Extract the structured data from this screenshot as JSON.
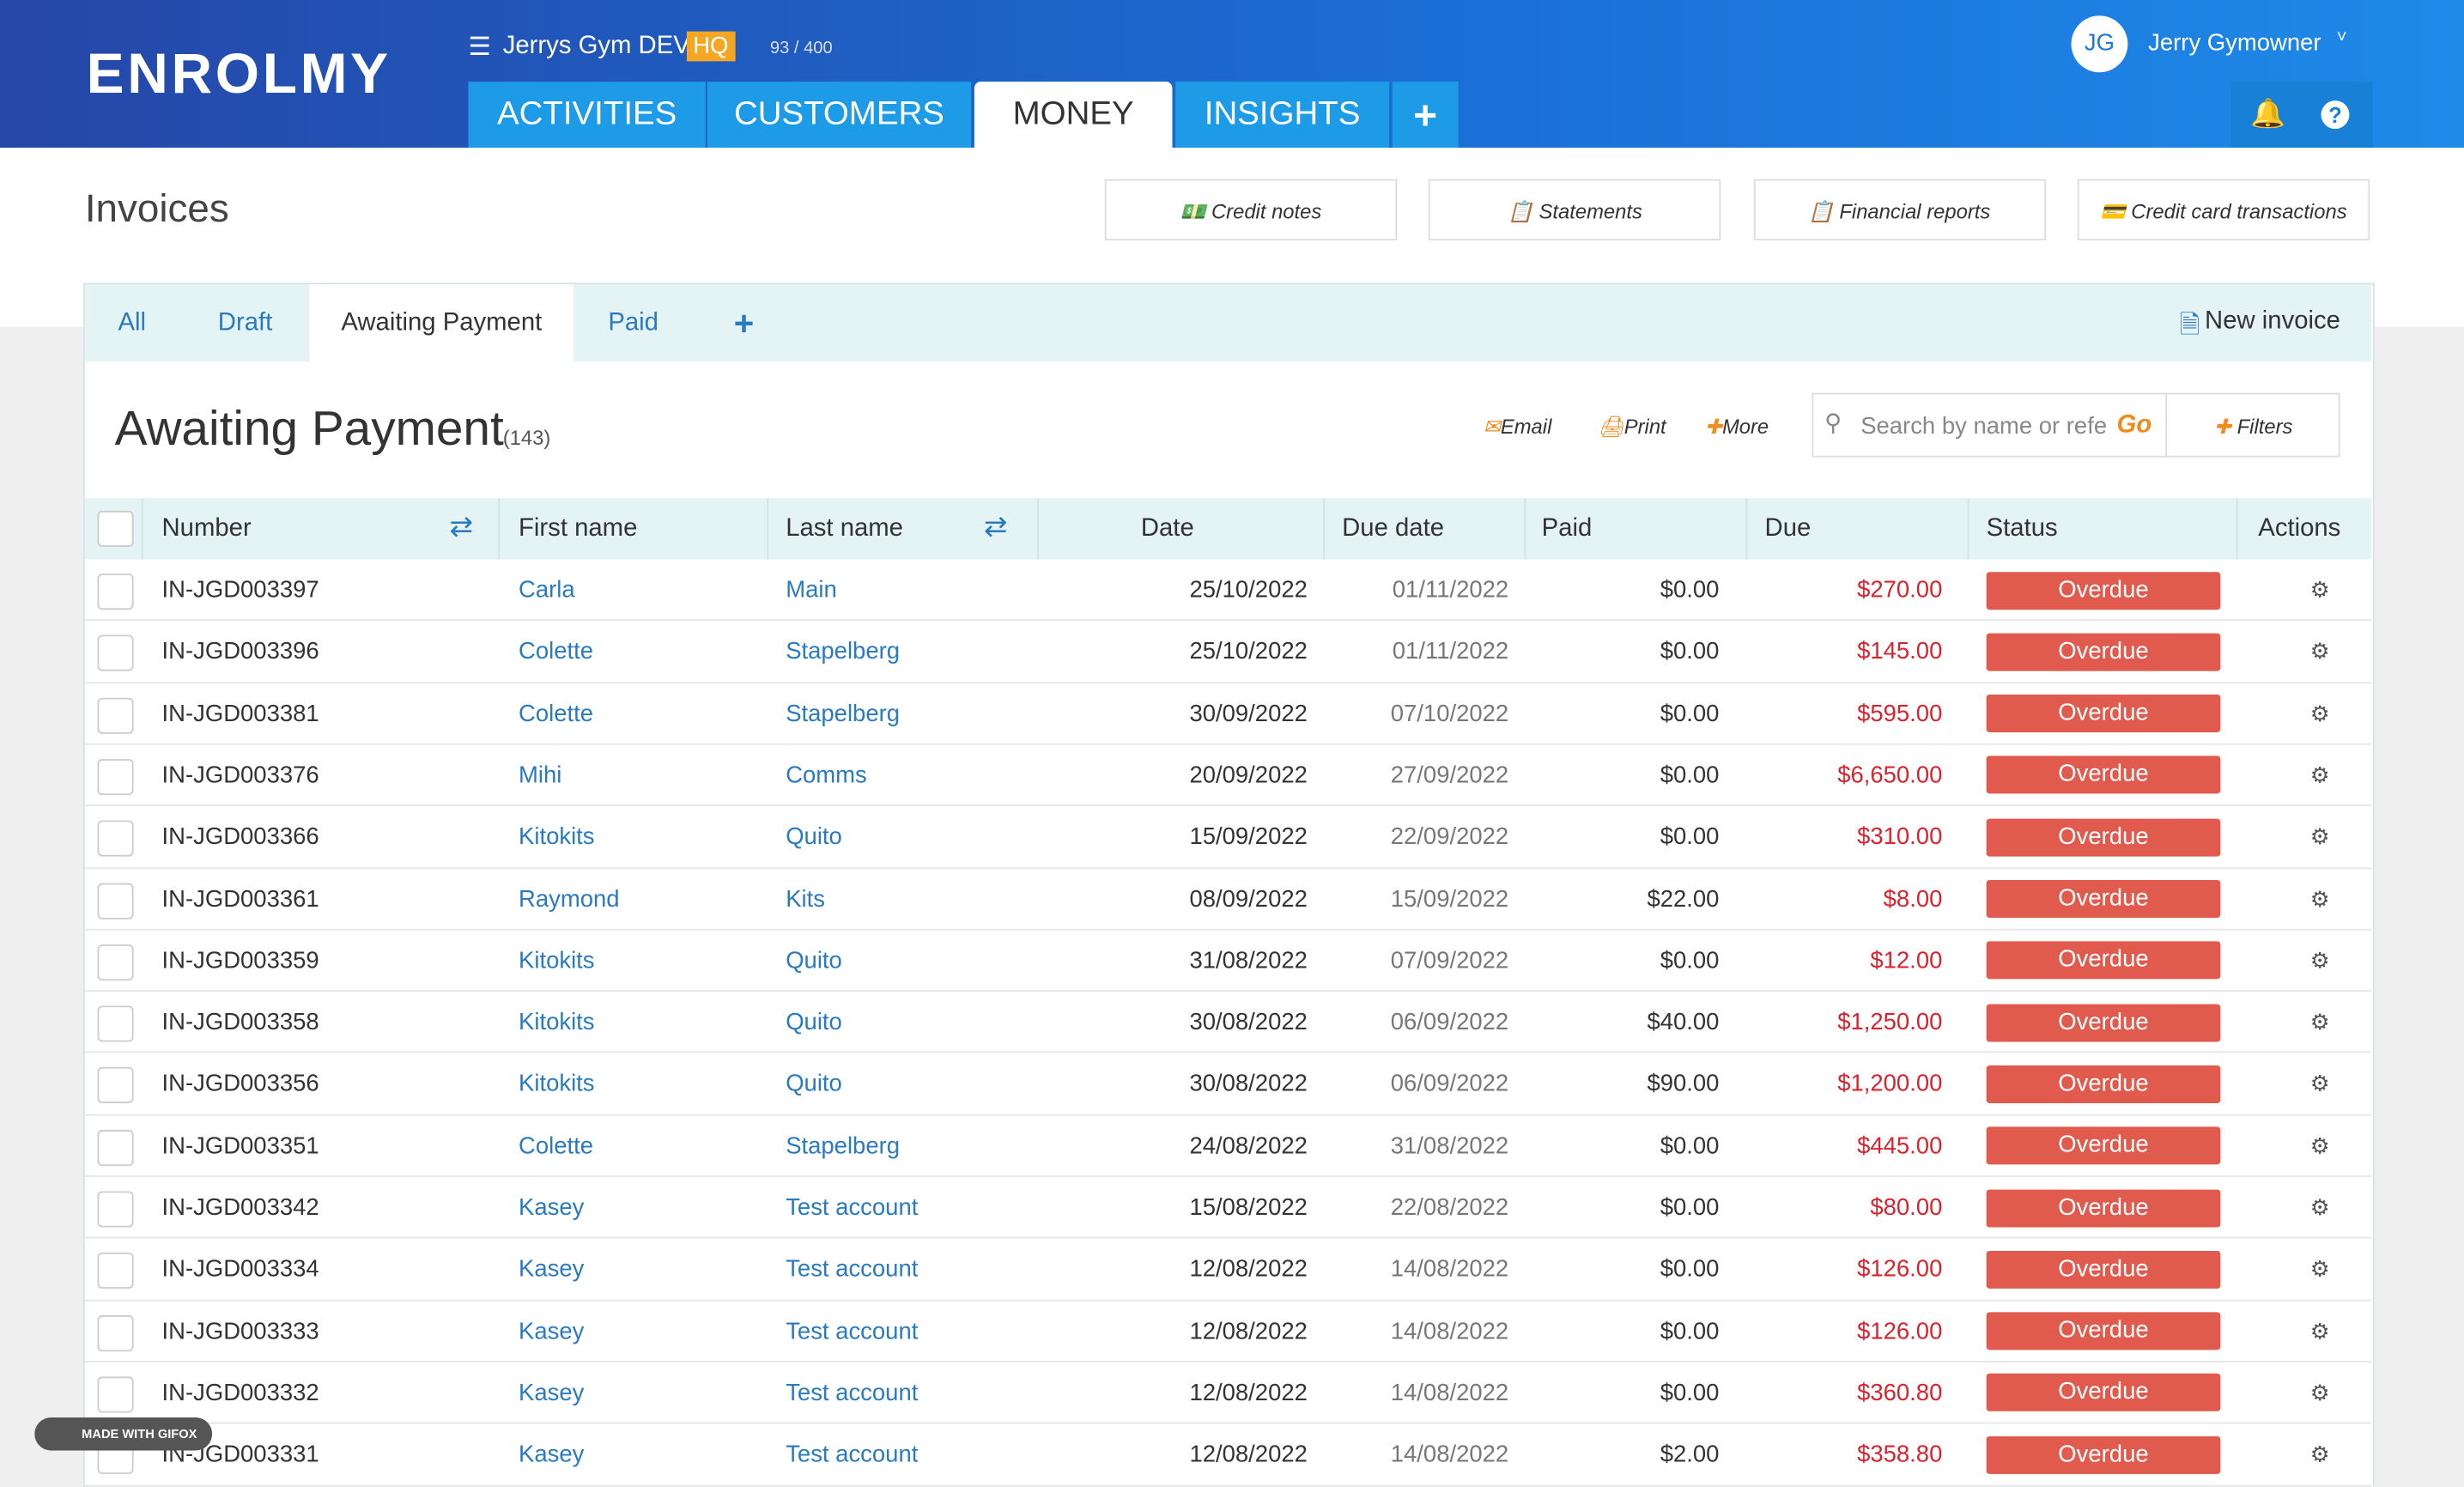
{
  "header": {
    "logo": "ENROLMY",
    "org": "Jerrys Gym DEV",
    "badge": "HQ",
    "usage": "93 / 400",
    "avatar": "JG",
    "user": "Jerry Gymowner"
  },
  "nav": [
    "ACTIVITIES",
    "CUSTOMERS",
    "MONEY",
    "INSIGHTS"
  ],
  "page": {
    "title": "Invoices",
    "buttons": [
      "Credit notes",
      "Statements",
      "Financial reports",
      "Credit card transactions"
    ]
  },
  "tabs": {
    "items": [
      "All",
      "Draft",
      "Awaiting Payment",
      "Paid"
    ],
    "new": "New invoice"
  },
  "section": {
    "title": "Awaiting Payment",
    "count": "(143)",
    "actions": [
      "Email",
      "Print",
      "More"
    ],
    "search": "Search by name or refe",
    "go": "Go",
    "filters": "Filters"
  },
  "table": {
    "columns": [
      "Number",
      "First name",
      "Last name",
      "Date",
      "Due date",
      "Paid",
      "Due",
      "Status",
      "Actions"
    ],
    "rows": [
      [
        "IN-JGD003397",
        "Carla",
        "Main",
        "25/10/2022",
        "01/11/2022",
        "$0.00",
        "$270.00",
        "Overdue"
      ],
      [
        "IN-JGD003396",
        "Colette",
        "Stapelberg",
        "25/10/2022",
        "01/11/2022",
        "$0.00",
        "$145.00",
        "Overdue"
      ],
      [
        "IN-JGD003381",
        "Colette",
        "Stapelberg",
        "30/09/2022",
        "07/10/2022",
        "$0.00",
        "$595.00",
        "Overdue"
      ],
      [
        "IN-JGD003376",
        "Mihi",
        "Comms",
        "20/09/2022",
        "27/09/2022",
        "$0.00",
        "$6,650.00",
        "Overdue"
      ],
      [
        "IN-JGD003366",
        "Kitokits",
        "Quito",
        "15/09/2022",
        "22/09/2022",
        "$0.00",
        "$310.00",
        "Overdue"
      ],
      [
        "IN-JGD003361",
        "Raymond",
        "Kits",
        "08/09/2022",
        "15/09/2022",
        "$22.00",
        "$8.00",
        "Overdue"
      ],
      [
        "IN-JGD003359",
        "Kitokits",
        "Quito",
        "31/08/2022",
        "07/09/2022",
        "$0.00",
        "$12.00",
        "Overdue"
      ],
      [
        "IN-JGD003358",
        "Kitokits",
        "Quito",
        "30/08/2022",
        "06/09/2022",
        "$40.00",
        "$1,250.00",
        "Overdue"
      ],
      [
        "IN-JGD003356",
        "Kitokits",
        "Quito",
        "30/08/2022",
        "06/09/2022",
        "$90.00",
        "$1,200.00",
        "Overdue"
      ],
      [
        "IN-JGD003351",
        "Colette",
        "Stapelberg",
        "24/08/2022",
        "31/08/2022",
        "$0.00",
        "$445.00",
        "Overdue"
      ],
      [
        "IN-JGD003342",
        "Kasey",
        "Test account",
        "15/08/2022",
        "22/08/2022",
        "$0.00",
        "$80.00",
        "Overdue"
      ],
      [
        "IN-JGD003334",
        "Kasey",
        "Test account",
        "12/08/2022",
        "14/08/2022",
        "$0.00",
        "$126.00",
        "Overdue"
      ],
      [
        "IN-JGD003333",
        "Kasey",
        "Test account",
        "12/08/2022",
        "14/08/2022",
        "$0.00",
        "$126.00",
        "Overdue"
      ],
      [
        "IN-JGD003332",
        "Kasey",
        "Test account",
        "12/08/2022",
        "14/08/2022",
        "$0.00",
        "$360.80",
        "Overdue"
      ],
      [
        "IN-JGD003331",
        "Kasey",
        "Test account",
        "12/08/2022",
        "14/08/2022",
        "$2.00",
        "$358.80",
        "Overdue"
      ]
    ]
  },
  "watermark": "MADE WITH GIFOX"
}
